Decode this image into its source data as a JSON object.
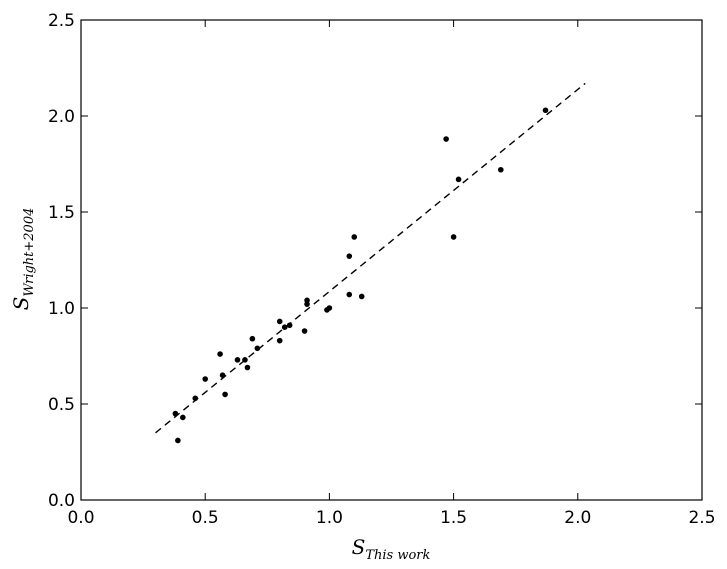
{
  "chart_data": {
    "type": "scatter",
    "xlabel": {
      "base": "S",
      "sub": "This work"
    },
    "ylabel": {
      "base": "S",
      "sub": "Wright+2004"
    },
    "xlim": [
      0.0,
      2.5
    ],
    "ylim": [
      0.0,
      2.5
    ],
    "xticks": [
      "0.0",
      "0.5",
      "1.0",
      "1.5",
      "2.0",
      "2.5"
    ],
    "yticks": [
      "0.0",
      "0.5",
      "1.0",
      "1.5",
      "2.0",
      "2.5"
    ],
    "grid": false,
    "points": [
      {
        "x": 0.38,
        "y": 0.45
      },
      {
        "x": 0.39,
        "y": 0.31
      },
      {
        "x": 0.41,
        "y": 0.43
      },
      {
        "x": 0.46,
        "y": 0.53
      },
      {
        "x": 0.5,
        "y": 0.63
      },
      {
        "x": 0.56,
        "y": 0.76
      },
      {
        "x": 0.57,
        "y": 0.65
      },
      {
        "x": 0.58,
        "y": 0.55
      },
      {
        "x": 0.63,
        "y": 0.73
      },
      {
        "x": 0.66,
        "y": 0.73
      },
      {
        "x": 0.67,
        "y": 0.69
      },
      {
        "x": 0.69,
        "y": 0.84
      },
      {
        "x": 0.71,
        "y": 0.79
      },
      {
        "x": 0.8,
        "y": 0.83
      },
      {
        "x": 0.8,
        "y": 0.93
      },
      {
        "x": 0.82,
        "y": 0.9
      },
      {
        "x": 0.84,
        "y": 0.91
      },
      {
        "x": 0.9,
        "y": 0.88
      },
      {
        "x": 0.91,
        "y": 1.02
      },
      {
        "x": 0.91,
        "y": 1.04
      },
      {
        "x": 0.99,
        "y": 0.99
      },
      {
        "x": 1.0,
        "y": 1.0
      },
      {
        "x": 1.08,
        "y": 1.07
      },
      {
        "x": 1.08,
        "y": 1.27
      },
      {
        "x": 1.1,
        "y": 1.37
      },
      {
        "x": 1.13,
        "y": 1.06
      },
      {
        "x": 1.47,
        "y": 1.88
      },
      {
        "x": 1.5,
        "y": 1.37
      },
      {
        "x": 1.52,
        "y": 1.67
      },
      {
        "x": 1.69,
        "y": 1.72
      },
      {
        "x": 1.87,
        "y": 2.03
      }
    ],
    "fit_line": {
      "style": "dashed",
      "x": [
        0.3,
        2.03
      ],
      "y": [
        0.35,
        2.17
      ]
    }
  }
}
